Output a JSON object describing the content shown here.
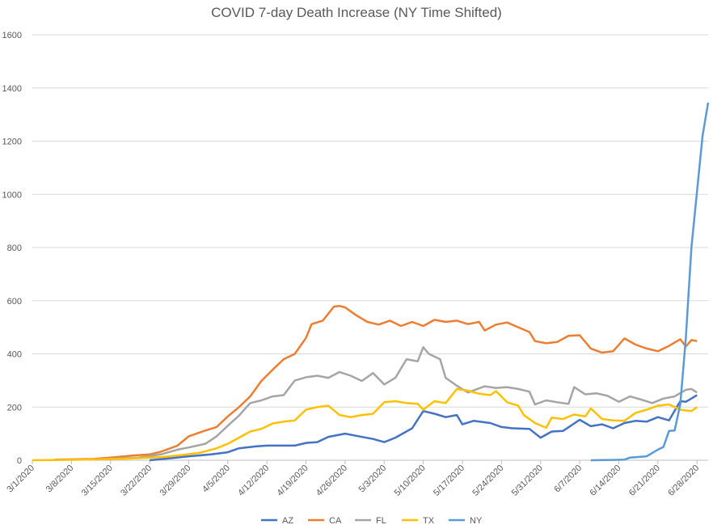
{
  "chart_data": {
    "type": "line",
    "title": "COVID 7-day Death Increase (NY Time Shifted)",
    "xlabel": "",
    "ylabel": "",
    "x_range": [
      "3/1/2020",
      "6/30/2020"
    ],
    "x_ticks": [
      "3/1/2020",
      "3/8/2020",
      "3/15/2020",
      "3/22/2020",
      "3/29/2020",
      "4/5/2020",
      "4/12/2020",
      "4/19/2020",
      "4/26/2020",
      "5/3/2020",
      "5/10/2020",
      "5/17/2020",
      "5/24/2020",
      "5/31/2020",
      "6/7/2020",
      "6/14/2020",
      "6/21/2020",
      "6/28/2020"
    ],
    "ylim": [
      0,
      1600
    ],
    "y_ticks": [
      0,
      200,
      400,
      600,
      800,
      1000,
      1200,
      1400,
      1600
    ],
    "grid": "horizontal",
    "legend_position": "bottom",
    "series": [
      {
        "name": "AZ",
        "color": "#4472C4",
        "points": [
          [
            "3/22/2020",
            0
          ],
          [
            "3/26/2020",
            8
          ],
          [
            "3/29/2020",
            15
          ],
          [
            "4/2/2020",
            22
          ],
          [
            "4/5/2020",
            30
          ],
          [
            "4/7/2020",
            45
          ],
          [
            "4/10/2020",
            52
          ],
          [
            "4/12/2020",
            55
          ],
          [
            "4/15/2020",
            55
          ],
          [
            "4/17/2020",
            55
          ],
          [
            "4/19/2020",
            65
          ],
          [
            "4/21/2020",
            68
          ],
          [
            "4/23/2020",
            88
          ],
          [
            "4/26/2020",
            100
          ],
          [
            "4/28/2020",
            92
          ],
          [
            "5/1/2020",
            80
          ],
          [
            "5/3/2020",
            68
          ],
          [
            "5/5/2020",
            85
          ],
          [
            "5/8/2020",
            120
          ],
          [
            "5/10/2020",
            185
          ],
          [
            "5/12/2020",
            175
          ],
          [
            "5/14/2020",
            162
          ],
          [
            "5/16/2020",
            170
          ],
          [
            "5/17/2020",
            135
          ],
          [
            "5/19/2020",
            148
          ],
          [
            "5/22/2020",
            140
          ],
          [
            "5/24/2020",
            125
          ],
          [
            "5/26/2020",
            120
          ],
          [
            "5/29/2020",
            118
          ],
          [
            "5/31/2020",
            85
          ],
          [
            "6/2/2020",
            108
          ],
          [
            "6/4/2020",
            110
          ],
          [
            "6/7/2020",
            152
          ],
          [
            "6/9/2020",
            128
          ],
          [
            "6/11/2020",
            135
          ],
          [
            "6/13/2020",
            120
          ],
          [
            "6/15/2020",
            140
          ],
          [
            "6/17/2020",
            148
          ],
          [
            "6/19/2020",
            145
          ],
          [
            "6/21/2020",
            162
          ],
          [
            "6/23/2020",
            150
          ],
          [
            "6/25/2020",
            222
          ],
          [
            "6/26/2020",
            220
          ],
          [
            "6/27/2020",
            232
          ],
          [
            "6/28/2020",
            245
          ]
        ]
      },
      {
        "name": "CA",
        "color": "#ED7D31",
        "points": [
          [
            "3/5/2020",
            2
          ],
          [
            "3/12/2020",
            5
          ],
          [
            "3/16/2020",
            12
          ],
          [
            "3/19/2020",
            18
          ],
          [
            "3/22/2020",
            22
          ],
          [
            "3/24/2020",
            32
          ],
          [
            "3/27/2020",
            55
          ],
          [
            "3/29/2020",
            90
          ],
          [
            "4/1/2020",
            112
          ],
          [
            "4/3/2020",
            125
          ],
          [
            "4/5/2020",
            165
          ],
          [
            "4/7/2020",
            200
          ],
          [
            "4/9/2020",
            240
          ],
          [
            "4/11/2020",
            298
          ],
          [
            "4/13/2020",
            340
          ],
          [
            "4/15/2020",
            380
          ],
          [
            "4/17/2020",
            400
          ],
          [
            "4/19/2020",
            460
          ],
          [
            "4/20/2020",
            512
          ],
          [
            "4/22/2020",
            525
          ],
          [
            "4/24/2020",
            578
          ],
          [
            "4/25/2020",
            580
          ],
          [
            "4/26/2020",
            575
          ],
          [
            "4/28/2020",
            545
          ],
          [
            "4/30/2020",
            520
          ],
          [
            "5/2/2020",
            510
          ],
          [
            "5/4/2020",
            525
          ],
          [
            "5/6/2020",
            505
          ],
          [
            "5/8/2020",
            520
          ],
          [
            "5/10/2020",
            505
          ],
          [
            "5/12/2020",
            528
          ],
          [
            "5/14/2020",
            520
          ],
          [
            "5/16/2020",
            525
          ],
          [
            "5/18/2020",
            512
          ],
          [
            "5/20/2020",
            520
          ],
          [
            "5/21/2020",
            488
          ],
          [
            "5/23/2020",
            510
          ],
          [
            "5/25/2020",
            518
          ],
          [
            "5/27/2020",
            500
          ],
          [
            "5/29/2020",
            482
          ],
          [
            "5/30/2020",
            448
          ],
          [
            "6/1/2020",
            440
          ],
          [
            "6/3/2020",
            445
          ],
          [
            "6/5/2020",
            468
          ],
          [
            "6/7/2020",
            470
          ],
          [
            "6/9/2020",
            420
          ],
          [
            "6/11/2020",
            405
          ],
          [
            "6/13/2020",
            410
          ],
          [
            "6/15/2020",
            458
          ],
          [
            "6/17/2020",
            435
          ],
          [
            "6/19/2020",
            420
          ],
          [
            "6/21/2020",
            410
          ],
          [
            "6/23/2020",
            430
          ],
          [
            "6/25/2020",
            455
          ],
          [
            "6/26/2020",
            428
          ],
          [
            "6/27/2020",
            452
          ],
          [
            "6/28/2020",
            448
          ]
        ]
      },
      {
        "name": "FL",
        "color": "#A5A5A5",
        "points": [
          [
            "3/12/2020",
            2
          ],
          [
            "3/16/2020",
            6
          ],
          [
            "3/20/2020",
            10
          ],
          [
            "3/24/2020",
            22
          ],
          [
            "3/27/2020",
            40
          ],
          [
            "3/29/2020",
            48
          ],
          [
            "4/1/2020",
            62
          ],
          [
            "4/3/2020",
            90
          ],
          [
            "4/5/2020",
            130
          ],
          [
            "4/7/2020",
            168
          ],
          [
            "4/9/2020",
            215
          ],
          [
            "4/11/2020",
            225
          ],
          [
            "4/13/2020",
            240
          ],
          [
            "4/15/2020",
            245
          ],
          [
            "4/17/2020",
            300
          ],
          [
            "4/19/2020",
            312
          ],
          [
            "4/21/2020",
            318
          ],
          [
            "4/23/2020",
            310
          ],
          [
            "4/25/2020",
            332
          ],
          [
            "4/27/2020",
            318
          ],
          [
            "4/29/2020",
            298
          ],
          [
            "5/1/2020",
            328
          ],
          [
            "5/3/2020",
            285
          ],
          [
            "5/5/2020",
            310
          ],
          [
            "5/7/2020",
            380
          ],
          [
            "5/9/2020",
            372
          ],
          [
            "5/10/2020",
            425
          ],
          [
            "5/11/2020",
            400
          ],
          [
            "5/13/2020",
            380
          ],
          [
            "5/14/2020",
            310
          ],
          [
            "5/16/2020",
            280
          ],
          [
            "5/18/2020",
            255
          ],
          [
            "5/21/2020",
            278
          ],
          [
            "5/23/2020",
            272
          ],
          [
            "5/25/2020",
            275
          ],
          [
            "5/27/2020",
            268
          ],
          [
            "5/29/2020",
            258
          ],
          [
            "5/30/2020",
            210
          ],
          [
            "6/1/2020",
            225
          ],
          [
            "6/3/2020",
            218
          ],
          [
            "6/5/2020",
            212
          ],
          [
            "6/6/2020",
            275
          ],
          [
            "6/8/2020",
            248
          ],
          [
            "6/10/2020",
            252
          ],
          [
            "6/12/2020",
            242
          ],
          [
            "6/14/2020",
            220
          ],
          [
            "6/16/2020",
            240
          ],
          [
            "6/18/2020",
            228
          ],
          [
            "6/20/2020",
            215
          ],
          [
            "6/22/2020",
            232
          ],
          [
            "6/24/2020",
            240
          ],
          [
            "6/26/2020",
            265
          ],
          [
            "6/27/2020",
            268
          ],
          [
            "6/28/2020",
            255
          ]
        ]
      },
      {
        "name": "TX",
        "color": "#FFC000",
        "points": [
          [
            "3/1/2020",
            0
          ],
          [
            "3/10/2020",
            2
          ],
          [
            "3/18/2020",
            6
          ],
          [
            "3/24/2020",
            12
          ],
          [
            "3/28/2020",
            20
          ],
          [
            "3/31/2020",
            28
          ],
          [
            "4/3/2020",
            45
          ],
          [
            "4/5/2020",
            62
          ],
          [
            "4/7/2020",
            85
          ],
          [
            "4/9/2020",
            108
          ],
          [
            "4/11/2020",
            118
          ],
          [
            "4/13/2020",
            138
          ],
          [
            "4/15/2020",
            145
          ],
          [
            "4/17/2020",
            150
          ],
          [
            "4/19/2020",
            190
          ],
          [
            "4/21/2020",
            200
          ],
          [
            "4/23/2020",
            205
          ],
          [
            "4/25/2020",
            170
          ],
          [
            "4/27/2020",
            162
          ],
          [
            "4/29/2020",
            170
          ],
          [
            "5/1/2020",
            175
          ],
          [
            "5/3/2020",
            218
          ],
          [
            "5/5/2020",
            222
          ],
          [
            "5/7/2020",
            215
          ],
          [
            "5/9/2020",
            212
          ],
          [
            "5/10/2020",
            190
          ],
          [
            "5/12/2020",
            222
          ],
          [
            "5/14/2020",
            215
          ],
          [
            "5/16/2020",
            268
          ],
          [
            "5/18/2020",
            262
          ],
          [
            "5/20/2020",
            250
          ],
          [
            "5/22/2020",
            245
          ],
          [
            "5/23/2020",
            260
          ],
          [
            "5/25/2020",
            218
          ],
          [
            "5/27/2020",
            205
          ],
          [
            "5/28/2020",
            170
          ],
          [
            "5/30/2020",
            140
          ],
          [
            "6/1/2020",
            122
          ],
          [
            "6/2/2020",
            160
          ],
          [
            "6/4/2020",
            155
          ],
          [
            "6/6/2020",
            172
          ],
          [
            "6/8/2020",
            165
          ],
          [
            "6/9/2020",
            195
          ],
          [
            "6/11/2020",
            155
          ],
          [
            "6/13/2020",
            150
          ],
          [
            "6/15/2020",
            148
          ],
          [
            "6/17/2020",
            178
          ],
          [
            "6/19/2020",
            190
          ],
          [
            "6/21/2020",
            205
          ],
          [
            "6/23/2020",
            210
          ],
          [
            "6/25/2020",
            190
          ],
          [
            "6/27/2020",
            185
          ],
          [
            "6/28/2020",
            200
          ]
        ]
      },
      {
        "name": "NY",
        "color": "#5B9BD5",
        "points": [
          [
            "6/9/2020",
            0
          ],
          [
            "6/15/2020",
            2
          ],
          [
            "6/16/2020",
            10
          ],
          [
            "6/19/2020",
            15
          ],
          [
            "6/21/2020",
            40
          ],
          [
            "6/22/2020",
            50
          ],
          [
            "6/23/2020",
            110
          ],
          [
            "6/24/2020",
            112
          ],
          [
            "6/25/2020",
            210
          ],
          [
            "6/26/2020",
            460
          ],
          [
            "6/27/2020",
            800
          ],
          [
            "6/28/2020",
            1010
          ],
          [
            "6/29/2020",
            1220
          ],
          [
            "6/30/2020",
            1345
          ]
        ]
      }
    ]
  }
}
